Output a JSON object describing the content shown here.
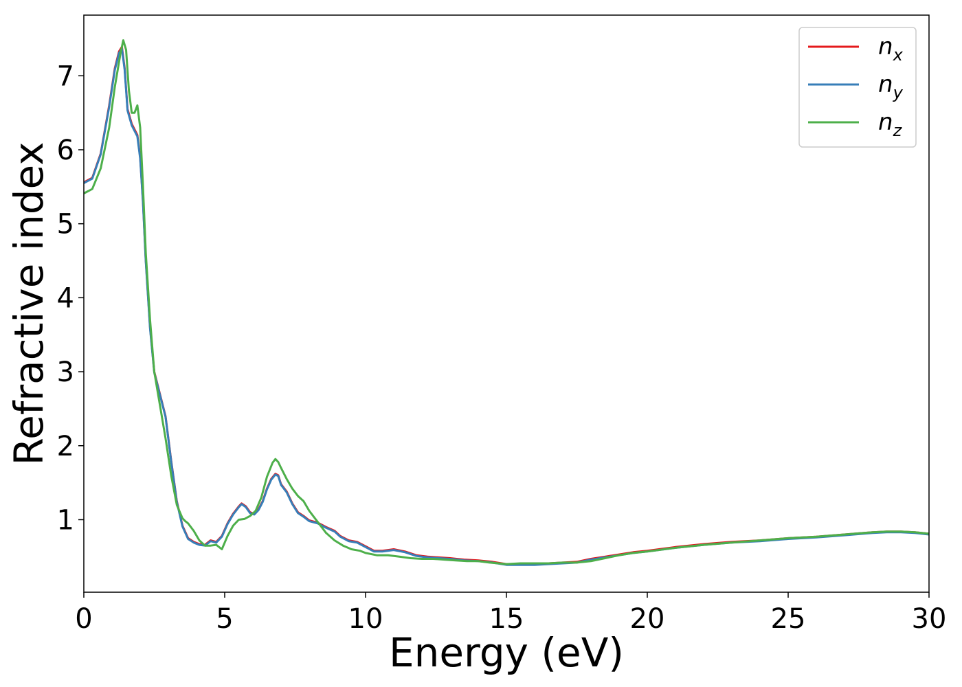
{
  "chart_data": {
    "type": "line",
    "xlabel": "Energy (eV)",
    "ylabel": "Refractive index",
    "xlim": [
      0,
      30
    ],
    "ylim": [
      0.02,
      7.82
    ],
    "x_ticks": [
      "0",
      "5",
      "10",
      "15",
      "20",
      "25",
      "30"
    ],
    "y_ticks": [
      "1",
      "2",
      "3",
      "4",
      "5",
      "6",
      "7"
    ],
    "grid": false,
    "legend_position": "top-right",
    "series": [
      {
        "name": "n_x",
        "symbol": "n",
        "subscript": "x",
        "color": "#e41a1c",
        "x": [
          0,
          0.3,
          0.6,
          0.9,
          1.1,
          1.25,
          1.35,
          1.45,
          1.55,
          1.7,
          1.9,
          2.0,
          2.1,
          2.2,
          2.35,
          2.5,
          2.7,
          2.9,
          3.1,
          3.3,
          3.5,
          3.7,
          3.9,
          4.1,
          4.3,
          4.5,
          4.7,
          4.9,
          5.1,
          5.3,
          5.5,
          5.6,
          5.75,
          5.9,
          6.05,
          6.2,
          6.35,
          6.5,
          6.65,
          6.8,
          6.9,
          7.0,
          7.2,
          7.4,
          7.6,
          7.8,
          8.0,
          8.3,
          8.6,
          8.9,
          9.1,
          9.4,
          9.7,
          10.0,
          10.3,
          10.6,
          11.0,
          11.4,
          11.8,
          12.2,
          12.6,
          13.0,
          13.5,
          14.0,
          14.5,
          15.0,
          15.5,
          16.0,
          16.5,
          17.0,
          17.5,
          18.0,
          18.5,
          19.0,
          19.5,
          20.0,
          21.0,
          22.0,
          23.0,
          24.0,
          25.0,
          26.0,
          27.0,
          28.0,
          28.5,
          29.0,
          29.5,
          30.0
        ],
        "y": [
          5.56,
          5.62,
          5.95,
          6.6,
          7.1,
          7.33,
          7.39,
          7.1,
          6.55,
          6.35,
          6.2,
          5.9,
          5.3,
          4.5,
          3.6,
          3.0,
          2.7,
          2.4,
          1.8,
          1.25,
          0.92,
          0.75,
          0.7,
          0.67,
          0.66,
          0.72,
          0.7,
          0.78,
          0.95,
          1.08,
          1.18,
          1.22,
          1.18,
          1.1,
          1.08,
          1.14,
          1.25,
          1.42,
          1.55,
          1.62,
          1.6,
          1.48,
          1.38,
          1.22,
          1.1,
          1.05,
          0.99,
          0.96,
          0.9,
          0.85,
          0.78,
          0.72,
          0.7,
          0.64,
          0.58,
          0.58,
          0.6,
          0.57,
          0.52,
          0.5,
          0.49,
          0.48,
          0.46,
          0.45,
          0.43,
          0.4,
          0.4,
          0.4,
          0.41,
          0.42,
          0.43,
          0.47,
          0.5,
          0.53,
          0.56,
          0.58,
          0.63,
          0.67,
          0.7,
          0.72,
          0.75,
          0.77,
          0.8,
          0.83,
          0.84,
          0.84,
          0.83,
          0.81
        ]
      },
      {
        "name": "n_y",
        "symbol": "n",
        "subscript": "y",
        "color": "#377eb8",
        "x": [
          0,
          0.3,
          0.6,
          0.9,
          1.1,
          1.25,
          1.35,
          1.45,
          1.55,
          1.7,
          1.9,
          2.0,
          2.1,
          2.2,
          2.35,
          2.5,
          2.7,
          2.9,
          3.1,
          3.3,
          3.5,
          3.7,
          3.9,
          4.1,
          4.3,
          4.5,
          4.7,
          4.9,
          5.1,
          5.3,
          5.5,
          5.6,
          5.75,
          5.9,
          6.05,
          6.2,
          6.35,
          6.5,
          6.65,
          6.8,
          6.9,
          7.0,
          7.2,
          7.4,
          7.6,
          7.8,
          8.0,
          8.3,
          8.6,
          8.9,
          9.1,
          9.4,
          9.7,
          10.0,
          10.3,
          10.6,
          11.0,
          11.4,
          11.8,
          12.2,
          12.6,
          13.0,
          13.5,
          14.0,
          14.5,
          15.0,
          15.5,
          16.0,
          16.5,
          17.0,
          17.5,
          18.0,
          18.5,
          19.0,
          19.5,
          20.0,
          21.0,
          22.0,
          23.0,
          24.0,
          25.0,
          26.0,
          27.0,
          28.0,
          28.5,
          29.0,
          29.5,
          30.0
        ],
        "y": [
          5.55,
          5.61,
          5.94,
          6.58,
          7.08,
          7.31,
          7.37,
          7.08,
          6.53,
          6.33,
          6.18,
          5.88,
          5.28,
          4.48,
          3.58,
          2.99,
          2.69,
          2.39,
          1.79,
          1.24,
          0.91,
          0.74,
          0.69,
          0.66,
          0.65,
          0.71,
          0.69,
          0.77,
          0.94,
          1.07,
          1.17,
          1.21,
          1.17,
          1.09,
          1.07,
          1.13,
          1.24,
          1.41,
          1.54,
          1.61,
          1.59,
          1.47,
          1.37,
          1.21,
          1.09,
          1.04,
          0.98,
          0.95,
          0.89,
          0.84,
          0.77,
          0.71,
          0.69,
          0.63,
          0.57,
          0.57,
          0.59,
          0.56,
          0.51,
          0.49,
          0.48,
          0.47,
          0.45,
          0.44,
          0.42,
          0.39,
          0.39,
          0.39,
          0.4,
          0.41,
          0.42,
          0.46,
          0.49,
          0.52,
          0.55,
          0.57,
          0.62,
          0.66,
          0.69,
          0.71,
          0.74,
          0.76,
          0.79,
          0.82,
          0.83,
          0.83,
          0.82,
          0.8
        ]
      },
      {
        "name": "n_z",
        "symbol": "n",
        "subscript": "z",
        "color": "#4daf4a",
        "x": [
          0,
          0.3,
          0.6,
          0.9,
          1.1,
          1.3,
          1.4,
          1.5,
          1.6,
          1.7,
          1.8,
          1.9,
          2.0,
          2.1,
          2.2,
          2.35,
          2.5,
          2.7,
          2.9,
          3.1,
          3.3,
          3.5,
          3.6,
          3.7,
          3.9,
          4.1,
          4.3,
          4.5,
          4.7,
          4.9,
          5.1,
          5.3,
          5.5,
          5.7,
          5.9,
          6.1,
          6.3,
          6.5,
          6.7,
          6.8,
          6.9,
          7.0,
          7.2,
          7.4,
          7.6,
          7.8,
          8.0,
          8.3,
          8.6,
          8.9,
          9.2,
          9.5,
          9.8,
          10.0,
          10.4,
          10.8,
          11.2,
          11.6,
          12.0,
          12.4,
          12.8,
          13.2,
          13.6,
          14.0,
          14.4,
          14.7,
          15.0,
          15.5,
          16.0,
          16.5,
          17.0,
          17.5,
          18.0,
          18.5,
          19.0,
          19.5,
          20.0,
          21.0,
          22.0,
          23.0,
          24.0,
          25.0,
          26.0,
          27.0,
          28.0,
          28.5,
          29.0,
          29.5,
          30.0
        ],
        "y": [
          5.41,
          5.47,
          5.75,
          6.3,
          6.85,
          7.3,
          7.48,
          7.35,
          6.8,
          6.5,
          6.5,
          6.6,
          6.3,
          5.5,
          4.6,
          3.7,
          3.0,
          2.55,
          2.1,
          1.6,
          1.2,
          1.02,
          0.98,
          0.95,
          0.85,
          0.72,
          0.65,
          0.65,
          0.66,
          0.6,
          0.78,
          0.92,
          1.0,
          1.01,
          1.05,
          1.12,
          1.3,
          1.58,
          1.77,
          1.82,
          1.78,
          1.7,
          1.55,
          1.42,
          1.32,
          1.25,
          1.12,
          0.97,
          0.82,
          0.72,
          0.65,
          0.6,
          0.58,
          0.55,
          0.52,
          0.52,
          0.5,
          0.48,
          0.47,
          0.47,
          0.46,
          0.45,
          0.44,
          0.44,
          0.42,
          0.41,
          0.4,
          0.41,
          0.41,
          0.41,
          0.42,
          0.42,
          0.44,
          0.48,
          0.52,
          0.55,
          0.57,
          0.62,
          0.66,
          0.69,
          0.72,
          0.75,
          0.77,
          0.8,
          0.83,
          0.84,
          0.84,
          0.83,
          0.81
        ]
      }
    ]
  }
}
